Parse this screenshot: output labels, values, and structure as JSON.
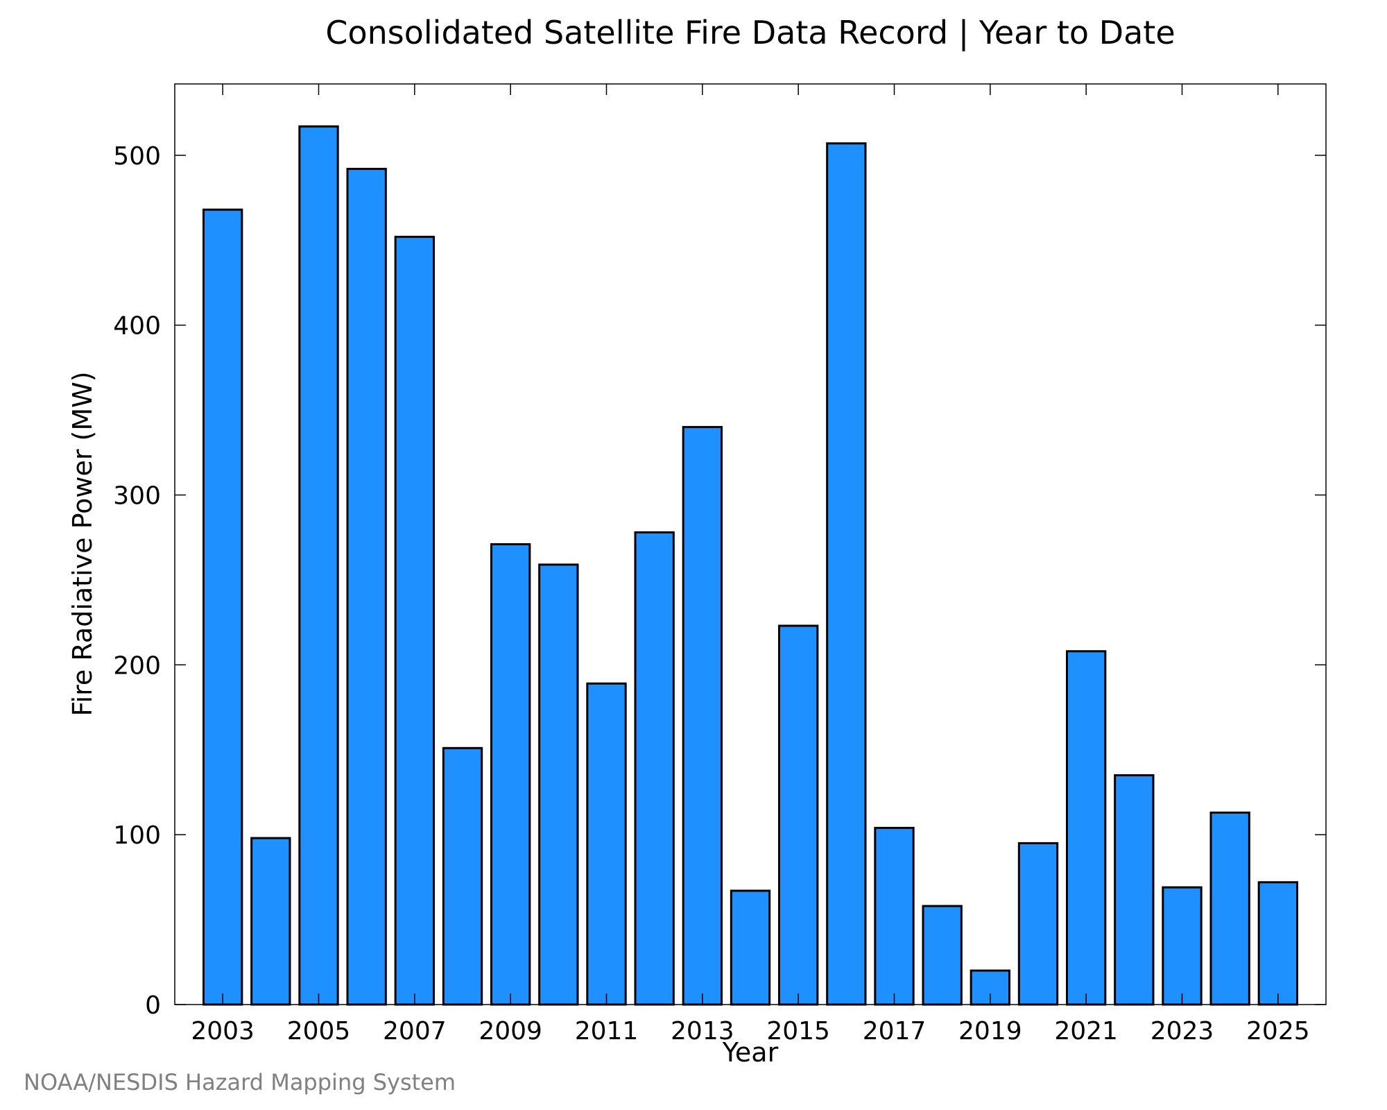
{
  "colors": {
    "bar_fill": "#1e90ff",
    "bar_stroke": "#000000",
    "credit": "#808080"
  },
  "credit": "NOAA/NESDIS Hazard Mapping System",
  "chart_data": {
    "type": "bar",
    "title": "Consolidated Satellite Fire Data Record | Year to Date",
    "xlabel": "Year",
    "ylabel": "Fire Radiative Power (MW)",
    "ylim": [
      0,
      542
    ],
    "xlim": [
      2002,
      2026
    ],
    "yticks": [
      0,
      100,
      200,
      300,
      400,
      500
    ],
    "xticks": [
      2003,
      2005,
      2007,
      2009,
      2011,
      2013,
      2015,
      2017,
      2019,
      2021,
      2023,
      2025
    ],
    "xtick_labels": [
      "2003",
      "2005",
      "2007",
      "2009",
      "2011",
      "2013",
      "2015",
      "2017",
      "2019",
      "2021",
      "2023",
      "2025"
    ],
    "grid": false,
    "legend": "none",
    "categories": [
      2003,
      2004,
      2005,
      2006,
      2007,
      2008,
      2009,
      2010,
      2011,
      2012,
      2013,
      2014,
      2015,
      2016,
      2017,
      2018,
      2019,
      2020,
      2021,
      2022,
      2023,
      2024,
      2025
    ],
    "values": [
      468,
      98,
      517,
      492,
      452,
      151,
      271,
      259,
      189,
      278,
      340,
      67,
      223,
      507,
      104,
      58,
      20,
      95,
      208,
      135,
      69,
      113,
      72
    ]
  }
}
